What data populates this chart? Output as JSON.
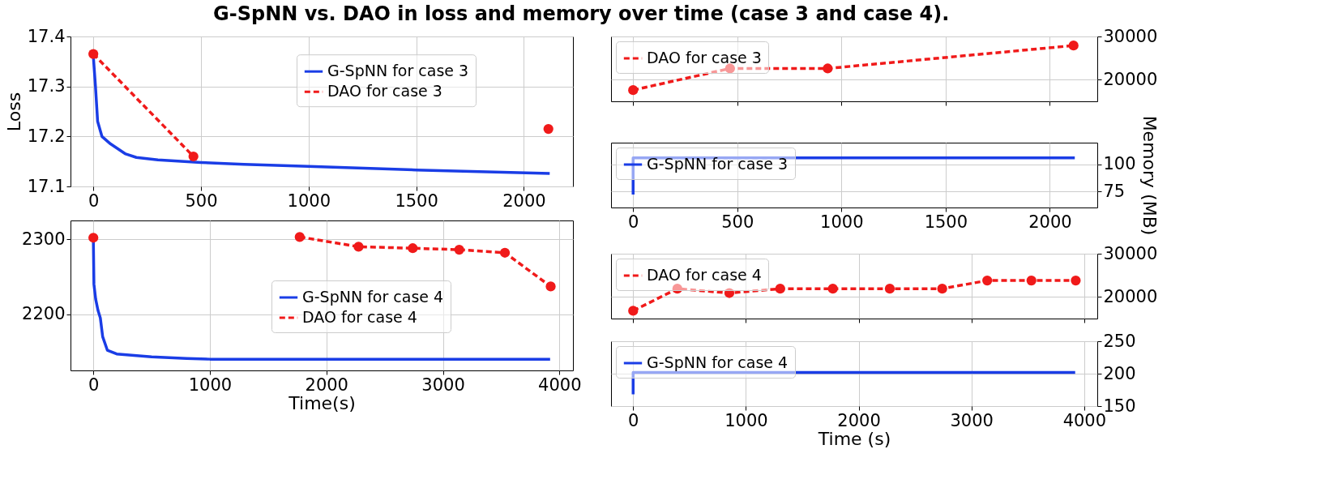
{
  "chart_data": [
    {
      "type": "line",
      "title": "G-SpNN vs. DAO in loss and memory over time (case 3 and case 4).",
      "ylabel": "Loss",
      "xlim": [
        -106,
        2228
      ],
      "xticks": [
        0,
        500,
        1000,
        1500,
        2000
      ],
      "ylim": [
        17.1,
        17.4
      ],
      "yticks": [
        17.1,
        17.2,
        17.3,
        17.4
      ],
      "grid": true,
      "legend": "top",
      "series": [
        {
          "name": "G-SpNN for case 3",
          "color": "#1a3de6",
          "line_style": "solid",
          "marker": "none",
          "x": [
            0,
            10,
            20,
            40,
            80,
            150,
            200,
            300,
            500,
            700,
            1000,
            1500,
            2120
          ],
          "values": [
            17.36,
            17.3,
            17.23,
            17.2,
            17.185,
            17.165,
            17.158,
            17.153,
            17.148,
            17.144,
            17.14,
            17.133,
            17.126
          ]
        },
        {
          "name": "DAO for case 3",
          "color": "#f01a1a",
          "line_style": "dashed",
          "marker": "circle",
          "x": [
            0,
            465,
            934,
            2114
          ],
          "values": [
            17.365,
            17.16,
            null,
            17.215
          ]
        }
      ]
    },
    {
      "type": "line",
      "xlabel": "Time(s)",
      "xlim": [
        -196,
        4116
      ],
      "xticks": [
        0,
        1000,
        2000,
        3000,
        4000
      ],
      "ylim": [
        2125,
        2325
      ],
      "yticks": [
        2200,
        2300
      ],
      "grid": true,
      "legend": "center",
      "series": [
        {
          "name": "G-SpNN for case 4",
          "color": "#1a3de6",
          "line_style": "solid",
          "marker": "none",
          "x": [
            0,
            5,
            20,
            40,
            60,
            80,
            120,
            200,
            500,
            800,
            1000,
            3920
          ],
          "values": [
            2300,
            2240,
            2220,
            2205,
            2195,
            2170,
            2152,
            2147,
            2143,
            2141,
            2140,
            2140
          ]
        },
        {
          "name": "DAO for case 4",
          "color": "#f01a1a",
          "line_style": "dashed",
          "marker": "circle",
          "x": [
            0,
            392,
            853,
            1304,
            1771,
            2276,
            2741,
            3140,
            3532,
            3925
          ],
          "values": [
            2302,
            null,
            null,
            null,
            2303,
            2290,
            2288,
            2286,
            2282,
            2237
          ]
        }
      ]
    },
    {
      "type": "line",
      "xlim": [
        -106,
        2228
      ],
      "xticks": [
        0,
        500,
        1000,
        1500,
        2000
      ],
      "y2lim": [
        15000,
        30000
      ],
      "y2ticks": [
        20000,
        30000
      ],
      "grid": true,
      "legend": "top left",
      "tick_labels": "y",
      "series": [
        {
          "name": "DAO for case 3",
          "color": "#f01a1a",
          "line_style": "dashed",
          "marker": "circle",
          "axis": "y2",
          "x": [
            0,
            465,
            934,
            2114
          ],
          "values": [
            17600,
            22600,
            22600,
            27900
          ]
        }
      ]
    },
    {
      "type": "line",
      "y2label": "Memory (MB)",
      "xlim": [
        -106,
        2228
      ],
      "xticks": [
        0,
        500,
        1000,
        1500,
        2000
      ],
      "y2lim": [
        60,
        120
      ],
      "y2ticks": [
        75,
        100
      ],
      "grid": true,
      "legend": "top left",
      "series": [
        {
          "name": "G-SpNN for case 3",
          "color": "#1a3de6",
          "line_style": "solid",
          "marker": "none",
          "axis": "y2",
          "x": [
            0,
            0,
            2120
          ],
          "values": [
            72,
            106,
            106
          ]
        }
      ]
    },
    {
      "type": "line",
      "xlim": [
        -196,
        4116
      ],
      "xticks": [
        0,
        1000,
        2000,
        3000,
        4000
      ],
      "y2lim": [
        15000,
        30000
      ],
      "y2ticks": [
        20000,
        30000
      ],
      "grid": true,
      "legend": "top left",
      "tick_labels": "y",
      "series": [
        {
          "name": "DAO for case 4",
          "color": "#f01a1a",
          "line_style": "dashed",
          "marker": "circle",
          "axis": "y2",
          "x": [
            0,
            392,
            853,
            1304,
            1771,
            2276,
            2741,
            3140,
            3532,
            3925
          ],
          "values": [
            16800,
            21900,
            20900,
            21900,
            21900,
            21900,
            21900,
            23800,
            23800,
            23800
          ]
        }
      ]
    },
    {
      "type": "line",
      "xlabel": "Time (s)",
      "xlim": [
        -196,
        4116
      ],
      "xticks": [
        0,
        1000,
        2000,
        3000,
        4000
      ],
      "y2lim": [
        150,
        250
      ],
      "y2ticks": [
        150,
        200,
        250
      ],
      "grid": true,
      "legend": "top left",
      "series": [
        {
          "name": "G-SpNN for case 4",
          "color": "#1a3de6",
          "line_style": "solid",
          "marker": "none",
          "axis": "y2",
          "x": [
            0,
            0,
            3920
          ],
          "values": [
            168,
            202,
            202
          ]
        }
      ]
    }
  ]
}
